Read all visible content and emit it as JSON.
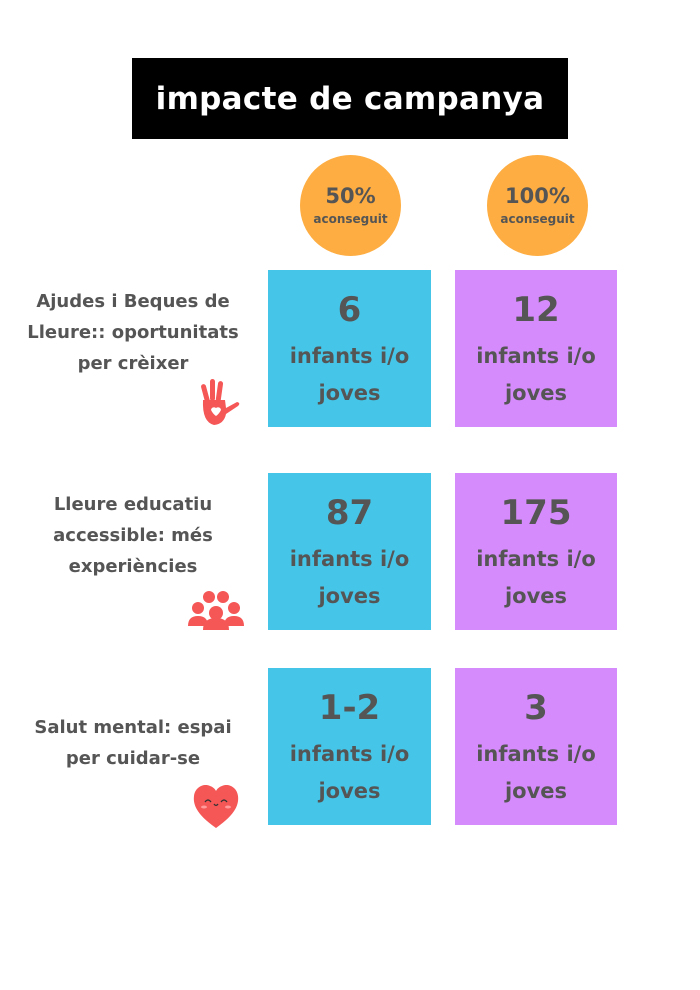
{
  "title": "impacte de campanya",
  "columns": [
    {
      "percent": "50%",
      "label": "aconseguit"
    },
    {
      "percent": "100%",
      "label": "aconseguit"
    }
  ],
  "unit": "infants i/o joves",
  "rows": [
    {
      "label": "Ajudes i Beques de Lleure:: oportunitats per crèixer",
      "icon": "hand-heart-icon",
      "values": [
        "6",
        "12"
      ]
    },
    {
      "label": "Lleure educatiu accessible: més experiències",
      "icon": "group-people-icon",
      "values": [
        "87",
        "175"
      ]
    },
    {
      "label": "Salut mental: espai per cuidar-se",
      "icon": "smiling-heart-icon",
      "values": [
        "1-2",
        "3"
      ]
    }
  ],
  "colors": {
    "circle": "#fdad41",
    "col1": "#45c6e9",
    "col2": "#d58bfb",
    "icon": "#f55656",
    "title_bg": "#000000"
  }
}
